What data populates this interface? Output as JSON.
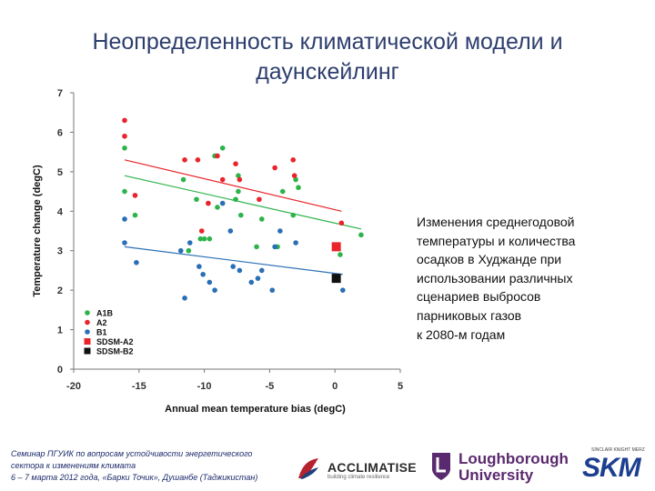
{
  "slide": {
    "title_line1": "Неопределенность климатической модели и",
    "title_line2": "даунскейлинг"
  },
  "side_text": [
    "Изменения среднегодовой",
    "температуры и количества",
    "осадков в Худжанде при",
    "использовании различных",
    "сценариев выбросов",
    "парниковых газов",
    "к 2080-м годам"
  ],
  "footer": {
    "line1": "Семинар ПГУИК по вопросам устойчивости энергетического",
    "line2": "сектора к изменениям климата",
    "line3": "6 – 7 марта 2012 года, «Барки Точик», Душанбе (Таджикистан)"
  },
  "logos": {
    "acclimatise": "ACCLIMATISE",
    "acclimatise_tag": "building climate resilience",
    "loughborough_1": "Loughborough",
    "loughborough_2": "University",
    "skm_small": "SINCLAIR KNIGHT MERZ",
    "skm": "SKM"
  },
  "colors": {
    "A1B": "#2db34a",
    "A2": "#e8242a",
    "B1": "#2a6fb6",
    "SDSM-A2": "#e8242a",
    "SDSM-B2": "#111111",
    "title": "#2d3e6e"
  },
  "chart_data": {
    "type": "scatter",
    "xlabel": "Annual mean temperature bias (degC)",
    "ylabel": "Temperature change (degC)",
    "xlim": [
      -20,
      5
    ],
    "ylim": [
      0,
      7
    ],
    "xticks": [
      "-20",
      "-15",
      "-10",
      "-5",
      "0",
      "5"
    ],
    "yticks": [
      "0",
      "1",
      "2",
      "3",
      "4",
      "5",
      "6",
      "7"
    ],
    "legend": [
      "A1B",
      "A2",
      "B1",
      "SDSM-A2",
      "SDSM-B2"
    ],
    "series": [
      {
        "name": "A1B",
        "points": [
          [
            -16.1,
            5.6
          ],
          [
            -16.1,
            4.5
          ],
          [
            -15.3,
            3.9
          ],
          [
            -11.6,
            4.8
          ],
          [
            -11.2,
            3.0
          ],
          [
            -10.6,
            4.3
          ],
          [
            -10.3,
            3.3
          ],
          [
            -10.0,
            3.3
          ],
          [
            -9.6,
            3.3
          ],
          [
            -9.2,
            5.4
          ],
          [
            -9.0,
            4.1
          ],
          [
            -8.6,
            5.6
          ],
          [
            -7.6,
            4.3
          ],
          [
            -7.4,
            4.9
          ],
          [
            -7.4,
            4.5
          ],
          [
            -7.2,
            3.9
          ],
          [
            -6.0,
            3.1
          ],
          [
            -5.6,
            3.8
          ],
          [
            -4.4,
            3.1
          ],
          [
            -4.0,
            4.5
          ],
          [
            -3.2,
            3.9
          ],
          [
            -3.0,
            4.8
          ],
          [
            -2.8,
            4.6
          ],
          [
            0.4,
            2.9
          ],
          [
            2.0,
            3.4
          ]
        ]
      },
      {
        "name": "A2",
        "points": [
          [
            -16.1,
            6.3
          ],
          [
            -16.1,
            5.9
          ],
          [
            -15.3,
            4.4
          ],
          [
            -11.5,
            5.3
          ],
          [
            -10.5,
            5.3
          ],
          [
            -10.2,
            3.5
          ],
          [
            -9.7,
            4.2
          ],
          [
            -9.0,
            5.4
          ],
          [
            -8.6,
            4.8
          ],
          [
            -7.6,
            5.2
          ],
          [
            -7.3,
            4.8
          ],
          [
            -5.8,
            4.3
          ],
          [
            -4.6,
            5.1
          ],
          [
            -3.2,
            5.3
          ],
          [
            -3.1,
            4.9
          ],
          [
            0.5,
            3.7
          ]
        ]
      },
      {
        "name": "B1",
        "points": [
          [
            -16.1,
            3.8
          ],
          [
            -16.1,
            3.2
          ],
          [
            -15.2,
            2.7
          ],
          [
            -11.8,
            3.0
          ],
          [
            -11.5,
            1.8
          ],
          [
            -11.1,
            3.2
          ],
          [
            -10.4,
            2.6
          ],
          [
            -10.1,
            2.4
          ],
          [
            -9.6,
            2.2
          ],
          [
            -9.2,
            2.0
          ],
          [
            -8.6,
            4.2
          ],
          [
            -8.0,
            3.5
          ],
          [
            -7.8,
            2.6
          ],
          [
            -7.3,
            2.5
          ],
          [
            -6.4,
            2.2
          ],
          [
            -5.9,
            2.3
          ],
          [
            -5.6,
            2.5
          ],
          [
            -4.8,
            2.0
          ],
          [
            -4.6,
            3.1
          ],
          [
            -4.2,
            3.5
          ],
          [
            -3.0,
            3.2
          ],
          [
            0.6,
            2.0
          ]
        ]
      },
      {
        "name": "SDSM-A2",
        "marker": "square",
        "points": [
          [
            0.1,
            3.1
          ]
        ]
      },
      {
        "name": "SDSM-B2",
        "marker": "square",
        "points": [
          [
            0.1,
            2.3
          ]
        ]
      }
    ],
    "trendlines": [
      {
        "name": "A2",
        "from": [
          -16.1,
          5.3
        ],
        "to": [
          0.5,
          4.0
        ]
      },
      {
        "name": "A1B",
        "from": [
          -16.1,
          4.9
        ],
        "to": [
          2.0,
          3.55
        ]
      },
      {
        "name": "B1",
        "from": [
          -16.1,
          3.1
        ],
        "to": [
          0.6,
          2.4
        ]
      }
    ]
  }
}
